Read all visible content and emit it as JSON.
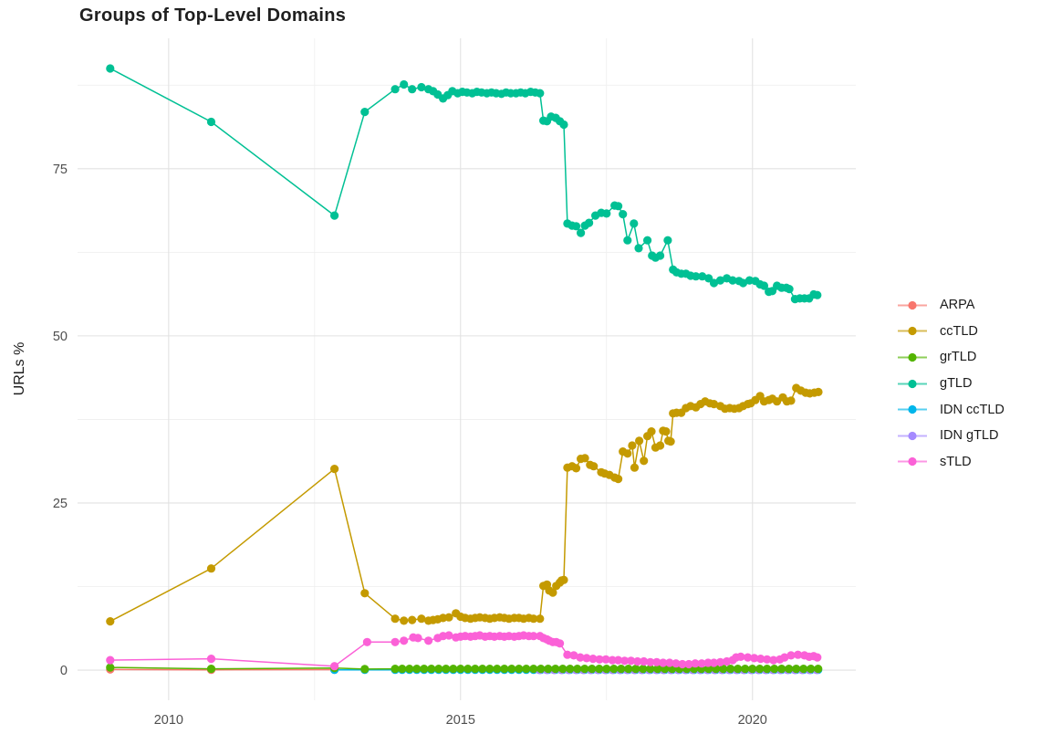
{
  "chart_data": {
    "type": "line",
    "title": "Groups of Top-Level Domains",
    "xlabel": "",
    "ylabel": "URLs %",
    "xlim": [
      2008.44,
      2021.77
    ],
    "ylim": [
      -4.5,
      94.5
    ],
    "x_ticks": [
      2010,
      2015,
      2020
    ],
    "x_tick_labels": [
      "2010",
      "2015",
      "2020"
    ],
    "x_minor_ticks": [
      2012.5,
      2017.5
    ],
    "y_ticks": [
      0,
      25,
      50,
      75
    ],
    "y_tick_labels": [
      "0",
      "25",
      "50",
      "75"
    ],
    "y_minor_ticks": [
      12.5,
      37.5,
      62.5,
      87.5
    ],
    "grid": "on",
    "legend_position": "right",
    "grid_major_color": "#e2e2e2",
    "grid_minor_color": "#eeeeee",
    "z_order": [
      "ARPA",
      "IDN ccTLD",
      "IDN gTLD",
      "grTLD",
      "ccTLD",
      "gTLD",
      "sTLD"
    ],
    "series": [
      {
        "name": "ARPA",
        "color": "#F8766D",
        "points": [
          [
            2009.0,
            0.1
          ],
          [
            2010.73,
            0.05
          ],
          [
            2012.84,
            0.08
          ]
        ],
        "runs": []
      },
      {
        "name": "ccTLD",
        "color": "#C49A00",
        "points": [
          [
            2009.0,
            7.3
          ],
          [
            2010.73,
            15.2
          ],
          [
            2012.84,
            30.1
          ],
          [
            2013.36,
            11.5
          ],
          [
            2013.88,
            7.7
          ],
          [
            2014.03,
            7.4
          ],
          [
            2014.17,
            7.5
          ],
          [
            2014.33,
            7.7
          ],
          [
            2014.45,
            7.4
          ],
          [
            2014.53,
            7.5
          ],
          [
            2014.61,
            7.6
          ],
          [
            2014.7,
            7.8
          ],
          [
            2014.8,
            7.9
          ],
          [
            2014.92,
            8.5
          ],
          [
            2015.0,
            8.0
          ],
          [
            2015.08,
            7.8
          ],
          [
            2015.17,
            7.7
          ],
          [
            2015.25,
            7.8
          ],
          [
            2015.33,
            7.9
          ],
          [
            2015.42,
            7.8
          ],
          [
            2015.5,
            7.7
          ],
          [
            2015.58,
            7.8
          ],
          [
            2015.67,
            7.9
          ],
          [
            2015.75,
            7.8
          ],
          [
            2015.83,
            7.7
          ],
          [
            2015.92,
            7.8
          ],
          [
            2016.0,
            7.8
          ],
          [
            2016.08,
            7.7
          ],
          [
            2016.17,
            7.8
          ],
          [
            2016.25,
            7.7
          ],
          [
            2016.36,
            7.7
          ],
          [
            2016.42,
            12.6
          ],
          [
            2016.48,
            12.8
          ],
          [
            2016.52,
            11.9
          ],
          [
            2016.58,
            11.6
          ],
          [
            2016.64,
            12.6
          ],
          [
            2016.7,
            13.1
          ],
          [
            2016.73,
            13.4
          ],
          [
            2016.77,
            13.5
          ],
          [
            2016.83,
            30.3
          ],
          [
            2016.91,
            30.5
          ],
          [
            2016.98,
            30.2
          ],
          [
            2017.06,
            31.6
          ],
          [
            2017.13,
            31.7
          ],
          [
            2017.22,
            30.7
          ],
          [
            2017.28,
            30.5
          ],
          [
            2017.41,
            29.6
          ],
          [
            2017.47,
            29.4
          ],
          [
            2017.55,
            29.2
          ],
          [
            2017.64,
            28.8
          ],
          [
            2017.7,
            28.6
          ],
          [
            2017.78,
            32.7
          ],
          [
            2017.86,
            32.4
          ],
          [
            2017.94,
            33.6
          ],
          [
            2017.98,
            30.3
          ],
          [
            2018.06,
            34.3
          ],
          [
            2018.14,
            31.3
          ],
          [
            2018.2,
            35.0
          ],
          [
            2018.27,
            35.7
          ],
          [
            2018.34,
            33.3
          ],
          [
            2018.42,
            33.6
          ],
          [
            2018.47,
            35.8
          ],
          [
            2018.52,
            35.7
          ],
          [
            2018.56,
            34.3
          ],
          [
            2018.6,
            34.2
          ],
          [
            2018.64,
            38.4
          ],
          [
            2018.7,
            38.5
          ],
          [
            2018.78,
            38.5
          ],
          [
            2018.86,
            39.2
          ],
          [
            2018.94,
            39.5
          ],
          [
            2019.03,
            39.3
          ],
          [
            2019.11,
            39.8
          ],
          [
            2019.19,
            40.2
          ],
          [
            2019.27,
            39.9
          ],
          [
            2019.34,
            39.8
          ],
          [
            2019.45,
            39.5
          ],
          [
            2019.53,
            39.1
          ],
          [
            2019.61,
            39.2
          ],
          [
            2019.69,
            39.1
          ],
          [
            2019.77,
            39.2
          ],
          [
            2019.84,
            39.5
          ],
          [
            2019.92,
            39.8
          ],
          [
            2019.97,
            39.9
          ],
          [
            2020.05,
            40.4
          ],
          [
            2020.13,
            41.0
          ],
          [
            2020.2,
            40.2
          ],
          [
            2020.28,
            40.4
          ],
          [
            2020.34,
            40.6
          ],
          [
            2020.42,
            40.2
          ],
          [
            2020.52,
            40.8
          ],
          [
            2020.59,
            40.2
          ],
          [
            2020.66,
            40.3
          ],
          [
            2020.75,
            42.2
          ],
          [
            2020.83,
            41.8
          ],
          [
            2020.91,
            41.5
          ],
          [
            2020.98,
            41.4
          ],
          [
            2021.06,
            41.5
          ],
          [
            2021.13,
            41.6
          ]
        ],
        "runs": []
      },
      {
        "name": "grTLD",
        "color": "#53B400",
        "points": [
          [
            2009.0,
            0.4
          ],
          [
            2010.73,
            0.2
          ],
          [
            2012.84,
            0.3
          ],
          [
            2013.36,
            0.15
          ],
          [
            2013.88,
            0.2
          ]
        ],
        "runs": [
          {
            "from": 2014.0,
            "to": 2021.13,
            "step": 0.125,
            "value": 0.2
          }
        ]
      },
      {
        "name": "gTLD",
        "color": "#00C094",
        "points": [
          [
            2009.0,
            90.0
          ],
          [
            2010.73,
            82.0
          ],
          [
            2012.84,
            68.0
          ],
          [
            2013.36,
            83.5
          ],
          [
            2013.88,
            86.9
          ],
          [
            2014.03,
            87.6
          ],
          [
            2014.17,
            86.9
          ],
          [
            2014.33,
            87.2
          ],
          [
            2014.45,
            86.9
          ],
          [
            2014.53,
            86.6
          ],
          [
            2014.61,
            86.1
          ],
          [
            2014.7,
            85.5
          ],
          [
            2014.78,
            86.0
          ],
          [
            2014.86,
            86.6
          ],
          [
            2014.95,
            86.3
          ],
          [
            2015.03,
            86.5
          ],
          [
            2015.11,
            86.4
          ],
          [
            2015.2,
            86.3
          ],
          [
            2015.28,
            86.5
          ],
          [
            2015.36,
            86.4
          ],
          [
            2015.45,
            86.3
          ],
          [
            2015.53,
            86.4
          ],
          [
            2015.61,
            86.3
          ],
          [
            2015.7,
            86.2
          ],
          [
            2015.78,
            86.4
          ],
          [
            2015.86,
            86.3
          ],
          [
            2015.95,
            86.3
          ],
          [
            2016.03,
            86.4
          ],
          [
            2016.11,
            86.3
          ],
          [
            2016.2,
            86.5
          ],
          [
            2016.28,
            86.4
          ],
          [
            2016.36,
            86.3
          ],
          [
            2016.42,
            82.2
          ],
          [
            2016.48,
            82.1
          ],
          [
            2016.55,
            82.8
          ],
          [
            2016.63,
            82.6
          ],
          [
            2016.7,
            82.1
          ],
          [
            2016.77,
            81.6
          ],
          [
            2016.83,
            66.8
          ],
          [
            2016.91,
            66.5
          ],
          [
            2016.98,
            66.4
          ],
          [
            2017.06,
            65.4
          ],
          [
            2017.13,
            66.5
          ],
          [
            2017.2,
            66.9
          ],
          [
            2017.31,
            68.0
          ],
          [
            2017.41,
            68.4
          ],
          [
            2017.5,
            68.3
          ],
          [
            2017.64,
            69.5
          ],
          [
            2017.7,
            69.4
          ],
          [
            2017.78,
            68.2
          ],
          [
            2017.86,
            64.3
          ],
          [
            2017.97,
            66.8
          ],
          [
            2018.05,
            63.1
          ],
          [
            2018.2,
            64.3
          ],
          [
            2018.28,
            62.0
          ],
          [
            2018.34,
            61.7
          ],
          [
            2018.42,
            62.0
          ],
          [
            2018.55,
            64.3
          ],
          [
            2018.64,
            59.9
          ],
          [
            2018.7,
            59.5
          ],
          [
            2018.78,
            59.3
          ],
          [
            2018.86,
            59.3
          ],
          [
            2018.94,
            59.0
          ],
          [
            2019.03,
            58.9
          ],
          [
            2019.14,
            58.9
          ],
          [
            2019.25,
            58.6
          ],
          [
            2019.34,
            57.9
          ],
          [
            2019.45,
            58.3
          ],
          [
            2019.56,
            58.6
          ],
          [
            2019.66,
            58.3
          ],
          [
            2019.77,
            58.2
          ],
          [
            2019.84,
            57.9
          ],
          [
            2019.95,
            58.3
          ],
          [
            2020.05,
            58.2
          ],
          [
            2020.13,
            57.7
          ],
          [
            2020.2,
            57.5
          ],
          [
            2020.28,
            56.6
          ],
          [
            2020.34,
            56.7
          ],
          [
            2020.42,
            57.5
          ],
          [
            2020.5,
            57.2
          ],
          [
            2020.58,
            57.2
          ],
          [
            2020.63,
            57.0
          ],
          [
            2020.73,
            55.5
          ],
          [
            2020.81,
            55.6
          ],
          [
            2020.89,
            55.6
          ],
          [
            2020.97,
            55.6
          ],
          [
            2021.05,
            56.2
          ],
          [
            2021.11,
            56.1
          ]
        ],
        "runs": []
      },
      {
        "name": "IDN ccTLD",
        "color": "#00B6EB",
        "points": [
          [
            2012.84,
            0.05
          ],
          [
            2013.36,
            0.05
          ],
          [
            2013.88,
            0.05
          ]
        ],
        "runs": [
          {
            "from": 2014.0,
            "to": 2021.13,
            "step": 0.125,
            "value": 0.05
          }
        ]
      },
      {
        "name": "IDN gTLD",
        "color": "#A58AFF",
        "points": [],
        "runs": [
          {
            "from": 2016.35,
            "to": 2021.13,
            "step": 0.125,
            "value": 0.02
          }
        ]
      },
      {
        "name": "sTLD",
        "color": "#FB61D7",
        "points": [
          [
            2009.0,
            1.5
          ],
          [
            2010.73,
            1.7
          ],
          [
            2012.84,
            0.6
          ],
          [
            2013.4,
            4.2
          ],
          [
            2013.88,
            4.2
          ],
          [
            2014.03,
            4.4
          ],
          [
            2014.19,
            4.9
          ],
          [
            2014.27,
            4.8
          ],
          [
            2014.45,
            4.4
          ],
          [
            2014.61,
            4.8
          ],
          [
            2014.7,
            5.1
          ],
          [
            2014.8,
            5.2
          ],
          [
            2014.92,
            4.9
          ],
          [
            2015.0,
            5.0
          ],
          [
            2015.08,
            5.1
          ],
          [
            2015.17,
            5.0
          ],
          [
            2015.25,
            5.1
          ],
          [
            2015.33,
            5.2
          ],
          [
            2015.42,
            5.0
          ],
          [
            2015.5,
            5.1
          ],
          [
            2015.58,
            5.0
          ],
          [
            2015.67,
            5.1
          ],
          [
            2015.75,
            5.0
          ],
          [
            2015.83,
            5.1
          ],
          [
            2015.92,
            5.0
          ],
          [
            2016.0,
            5.1
          ],
          [
            2016.08,
            5.2
          ],
          [
            2016.17,
            5.1
          ],
          [
            2016.25,
            5.1
          ],
          [
            2016.36,
            5.1
          ],
          [
            2016.42,
            4.8
          ],
          [
            2016.48,
            4.6
          ],
          [
            2016.52,
            4.4
          ],
          [
            2016.58,
            4.2
          ],
          [
            2016.64,
            4.2
          ],
          [
            2016.7,
            4.0
          ],
          [
            2016.83,
            2.3
          ],
          [
            2016.94,
            2.2
          ],
          [
            2017.05,
            1.9
          ],
          [
            2017.16,
            1.8
          ],
          [
            2017.27,
            1.7
          ],
          [
            2017.38,
            1.6
          ],
          [
            2017.49,
            1.6
          ],
          [
            2017.6,
            1.5
          ],
          [
            2017.7,
            1.5
          ],
          [
            2017.81,
            1.4
          ],
          [
            2017.92,
            1.4
          ],
          [
            2018.03,
            1.3
          ],
          [
            2018.14,
            1.3
          ],
          [
            2018.25,
            1.2
          ],
          [
            2018.36,
            1.2
          ],
          [
            2018.47,
            1.1
          ],
          [
            2018.58,
            1.1
          ],
          [
            2018.69,
            1.0
          ],
          [
            2018.8,
            0.9
          ],
          [
            2018.91,
            0.9
          ],
          [
            2019.02,
            1.0
          ],
          [
            2019.13,
            1.0
          ],
          [
            2019.24,
            1.1
          ],
          [
            2019.34,
            1.1
          ],
          [
            2019.45,
            1.2
          ],
          [
            2019.56,
            1.3
          ],
          [
            2019.66,
            1.5
          ],
          [
            2019.72,
            1.9
          ],
          [
            2019.8,
            2.0
          ],
          [
            2019.92,
            1.9
          ],
          [
            2020.03,
            1.8
          ],
          [
            2020.14,
            1.7
          ],
          [
            2020.25,
            1.6
          ],
          [
            2020.36,
            1.5
          ],
          [
            2020.47,
            1.6
          ],
          [
            2020.55,
            1.9
          ],
          [
            2020.66,
            2.2
          ],
          [
            2020.78,
            2.3
          ],
          [
            2020.89,
            2.2
          ],
          [
            2020.97,
            2.0
          ],
          [
            2021.05,
            2.1
          ],
          [
            2021.11,
            1.9
          ]
        ],
        "runs": []
      }
    ]
  }
}
